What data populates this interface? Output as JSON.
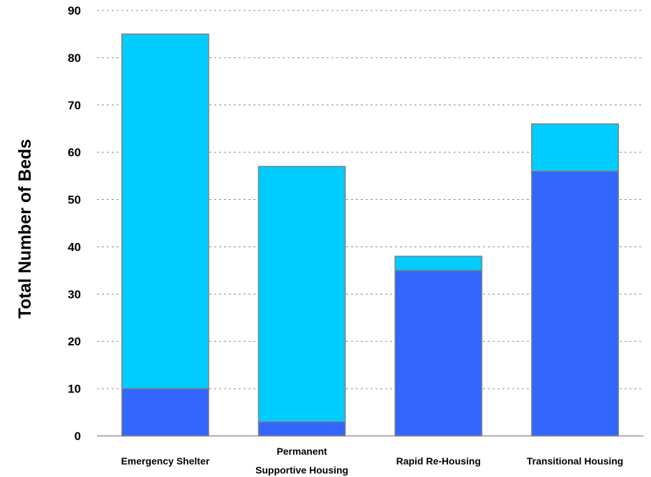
{
  "chart_data": {
    "type": "bar",
    "stacked": true,
    "categories": [
      [
        "Emergency Shelter"
      ],
      [
        "Permanent",
        "Supportive Housing"
      ],
      [
        "Rapid Re-Housing"
      ],
      [
        "Transitional Housing"
      ]
    ],
    "series": [
      {
        "values": [
          10,
          3,
          35,
          56
        ],
        "color": "#3366ff"
      },
      {
        "values": [
          75,
          54,
          3,
          10
        ],
        "color": "#00ccff"
      }
    ],
    "title": "",
    "xlabel": "",
    "ylabel": "Total Number of Beds",
    "ylim": [
      0,
      90
    ],
    "yticks": [
      0,
      10,
      20,
      30,
      40,
      50,
      60,
      70,
      80,
      90
    ],
    "grid": true,
    "legend": "none"
  }
}
